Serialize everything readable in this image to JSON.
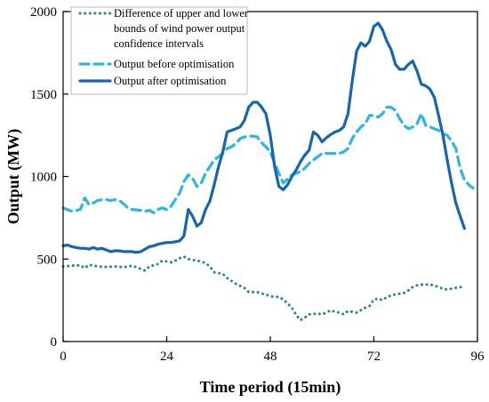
{
  "chart_data": {
    "type": "line",
    "xlabel": "Time period (15min)",
    "ylabel": "Output (MW)",
    "xlim": [
      0,
      96
    ],
    "ylim": [
      0,
      2000
    ],
    "x_ticks": [
      0,
      24,
      48,
      72,
      96
    ],
    "y_ticks": [
      0,
      500,
      1000,
      1500,
      2000
    ],
    "grid": false,
    "legend": {
      "placement": "top-left",
      "entries": [
        {
          "series": 0,
          "lines": [
            "Difference of upper and lower",
            "bounds of wind power output",
            "confidence intervals"
          ]
        },
        {
          "series": 1,
          "lines": [
            "Output before optimisation"
          ]
        },
        {
          "series": 2,
          "lines": [
            "Output after optimisation"
          ]
        }
      ]
    },
    "series": [
      {
        "name": "Difference of upper and lower bounds of wind power output confidence intervals",
        "style": "dotted",
        "color": "#1f8a87",
        "points": [
          [
            0,
            455
          ],
          [
            2,
            460
          ],
          [
            4,
            462
          ],
          [
            5,
            445
          ],
          [
            6,
            465
          ],
          [
            8,
            455
          ],
          [
            10,
            452
          ],
          [
            12,
            455
          ],
          [
            14,
            450
          ],
          [
            16,
            460
          ],
          [
            18,
            440
          ],
          [
            19,
            430
          ],
          [
            20,
            455
          ],
          [
            22,
            470
          ],
          [
            23,
            490
          ],
          [
            24,
            485
          ],
          [
            25,
            480
          ],
          [
            26,
            490
          ],
          [
            27,
            505
          ],
          [
            28,
            515
          ],
          [
            29,
            500
          ],
          [
            30,
            495
          ],
          [
            31,
            490
          ],
          [
            32,
            485
          ],
          [
            33,
            475
          ],
          [
            34,
            455
          ],
          [
            35,
            420
          ],
          [
            36,
            415
          ],
          [
            37,
            410
          ],
          [
            38,
            385
          ],
          [
            40,
            350
          ],
          [
            42,
            325
          ],
          [
            43,
            300
          ],
          [
            45,
            300
          ],
          [
            46,
            290
          ],
          [
            47,
            285
          ],
          [
            48,
            275
          ],
          [
            49,
            270
          ],
          [
            50,
            270
          ],
          [
            51,
            255
          ],
          [
            52,
            230
          ],
          [
            53,
            205
          ],
          [
            54,
            160
          ],
          [
            55,
            130
          ],
          [
            56,
            145
          ],
          [
            57,
            165
          ],
          [
            59,
            170
          ],
          [
            60,
            165
          ],
          [
            61,
            175
          ],
          [
            62,
            190
          ],
          [
            63,
            180
          ],
          [
            64,
            175
          ],
          [
            65,
            165
          ],
          [
            66,
            185
          ],
          [
            68,
            175
          ],
          [
            69,
            190
          ],
          [
            70,
            205
          ],
          [
            71,
            215
          ],
          [
            72,
            255
          ],
          [
            73,
            260
          ],
          [
            74,
            250
          ],
          [
            75,
            270
          ],
          [
            76,
            280
          ],
          [
            77,
            285
          ],
          [
            78,
            290
          ],
          [
            79,
            295
          ],
          [
            80,
            310
          ],
          [
            81,
            330
          ],
          [
            82,
            340
          ],
          [
            83,
            345
          ],
          [
            85,
            345
          ],
          [
            86,
            340
          ],
          [
            87,
            330
          ],
          [
            88,
            320
          ],
          [
            89,
            315
          ],
          [
            90,
            320
          ],
          [
            91,
            325
          ],
          [
            92,
            330
          ],
          [
            93,
            325
          ]
        ]
      },
      {
        "name": "Output before optimisation",
        "style": "dashed",
        "color": "#2eb5e8",
        "points": [
          [
            0,
            810
          ],
          [
            2,
            790
          ],
          [
            4,
            800
          ],
          [
            5,
            870
          ],
          [
            6,
            830
          ],
          [
            7,
            840
          ],
          [
            8,
            855
          ],
          [
            9,
            860
          ],
          [
            10,
            860
          ],
          [
            11,
            855
          ],
          [
            12,
            860
          ],
          [
            13,
            855
          ],
          [
            14,
            835
          ],
          [
            15,
            810
          ],
          [
            16,
            800
          ],
          [
            18,
            795
          ],
          [
            19,
            790
          ],
          [
            20,
            795
          ],
          [
            21,
            780
          ],
          [
            22,
            800
          ],
          [
            23,
            810
          ],
          [
            24,
            800
          ],
          [
            25,
            820
          ],
          [
            26,
            860
          ],
          [
            27,
            900
          ],
          [
            28,
            970
          ],
          [
            29,
            1010
          ],
          [
            30,
            990
          ],
          [
            31,
            940
          ],
          [
            32,
            960
          ],
          [
            33,
            1020
          ],
          [
            34,
            1060
          ],
          [
            35,
            1100
          ],
          [
            36,
            1120
          ],
          [
            37,
            1140
          ],
          [
            38,
            1170
          ],
          [
            39,
            1180
          ],
          [
            40,
            1200
          ],
          [
            41,
            1230
          ],
          [
            42,
            1240
          ],
          [
            43,
            1245
          ],
          [
            44,
            1245
          ],
          [
            45,
            1240
          ],
          [
            46,
            1205
          ],
          [
            47,
            1180
          ],
          [
            48,
            1150
          ],
          [
            49,
            1080
          ],
          [
            50,
            1020
          ],
          [
            51,
            960
          ],
          [
            52,
            985
          ],
          [
            53,
            1010
          ],
          [
            54,
            1020
          ],
          [
            55,
            1030
          ],
          [
            56,
            1050
          ],
          [
            57,
            1080
          ],
          [
            58,
            1100
          ],
          [
            59,
            1120
          ],
          [
            60,
            1140
          ],
          [
            61,
            1140
          ],
          [
            62,
            1140
          ],
          [
            63,
            1140
          ],
          [
            64,
            1140
          ],
          [
            65,
            1150
          ],
          [
            66,
            1170
          ],
          [
            67,
            1230
          ],
          [
            68,
            1270
          ],
          [
            69,
            1300
          ],
          [
            70,
            1320
          ],
          [
            71,
            1370
          ],
          [
            72,
            1370
          ],
          [
            73,
            1360
          ],
          [
            74,
            1380
          ],
          [
            75,
            1420
          ],
          [
            76,
            1420
          ],
          [
            77,
            1400
          ],
          [
            78,
            1350
          ],
          [
            79,
            1310
          ],
          [
            80,
            1290
          ],
          [
            81,
            1300
          ],
          [
            82,
            1320
          ],
          [
            83,
            1380
          ],
          [
            84,
            1310
          ],
          [
            85,
            1300
          ],
          [
            86,
            1290
          ],
          [
            87,
            1280
          ],
          [
            88,
            1260
          ],
          [
            89,
            1250
          ],
          [
            90,
            1215
          ],
          [
            91,
            1170
          ],
          [
            92,
            1050
          ],
          [
            93,
            980
          ],
          [
            94,
            950
          ],
          [
            95,
            930
          ]
        ]
      },
      {
        "name": "Output after optimisation",
        "style": "solid",
        "color": "#1565b0",
        "points": [
          [
            0,
            580
          ],
          [
            1,
            585
          ],
          [
            2,
            575
          ],
          [
            3,
            570
          ],
          [
            4,
            565
          ],
          [
            5,
            565
          ],
          [
            6,
            560
          ],
          [
            7,
            570
          ],
          [
            8,
            560
          ],
          [
            9,
            565
          ],
          [
            10,
            555
          ],
          [
            11,
            545
          ],
          [
            12,
            550
          ],
          [
            13,
            550
          ],
          [
            14,
            545
          ],
          [
            15,
            545
          ],
          [
            16,
            545
          ],
          [
            17,
            540
          ],
          [
            18,
            545
          ],
          [
            19,
            560
          ],
          [
            20,
            575
          ],
          [
            21,
            580
          ],
          [
            22,
            590
          ],
          [
            23,
            595
          ],
          [
            24,
            600
          ],
          [
            25,
            600
          ],
          [
            26,
            605
          ],
          [
            27,
            610
          ],
          [
            28,
            640
          ],
          [
            29,
            800
          ],
          [
            30,
            760
          ],
          [
            31,
            700
          ],
          [
            32,
            720
          ],
          [
            33,
            800
          ],
          [
            34,
            850
          ],
          [
            35,
            950
          ],
          [
            36,
            1060
          ],
          [
            37,
            1150
          ],
          [
            38,
            1270
          ],
          [
            39,
            1280
          ],
          [
            40,
            1290
          ],
          [
            41,
            1300
          ],
          [
            42,
            1340
          ],
          [
            43,
            1420
          ],
          [
            44,
            1450
          ],
          [
            45,
            1450
          ],
          [
            46,
            1420
          ],
          [
            47,
            1380
          ],
          [
            48,
            1250
          ],
          [
            49,
            1060
          ],
          [
            50,
            940
          ],
          [
            51,
            920
          ],
          [
            52,
            950
          ],
          [
            53,
            1000
          ],
          [
            54,
            1040
          ],
          [
            55,
            1090
          ],
          [
            56,
            1130
          ],
          [
            57,
            1160
          ],
          [
            58,
            1270
          ],
          [
            59,
            1250
          ],
          [
            60,
            1210
          ],
          [
            61,
            1235
          ],
          [
            62,
            1255
          ],
          [
            63,
            1270
          ],
          [
            64,
            1280
          ],
          [
            65,
            1300
          ],
          [
            66,
            1380
          ],
          [
            67,
            1580
          ],
          [
            68,
            1760
          ],
          [
            69,
            1810
          ],
          [
            70,
            1790
          ],
          [
            71,
            1820
          ],
          [
            72,
            1910
          ],
          [
            73,
            1930
          ],
          [
            74,
            1890
          ],
          [
            75,
            1820
          ],
          [
            76,
            1770
          ],
          [
            77,
            1680
          ],
          [
            78,
            1650
          ],
          [
            79,
            1650
          ],
          [
            80,
            1680
          ],
          [
            81,
            1700
          ],
          [
            82,
            1640
          ],
          [
            83,
            1560
          ],
          [
            84,
            1550
          ],
          [
            85,
            1530
          ],
          [
            86,
            1480
          ],
          [
            87,
            1370
          ],
          [
            88,
            1250
          ],
          [
            89,
            1100
          ],
          [
            90,
            960
          ],
          [
            91,
            840
          ],
          [
            92,
            760
          ],
          [
            93,
            685
          ]
        ]
      }
    ]
  }
}
